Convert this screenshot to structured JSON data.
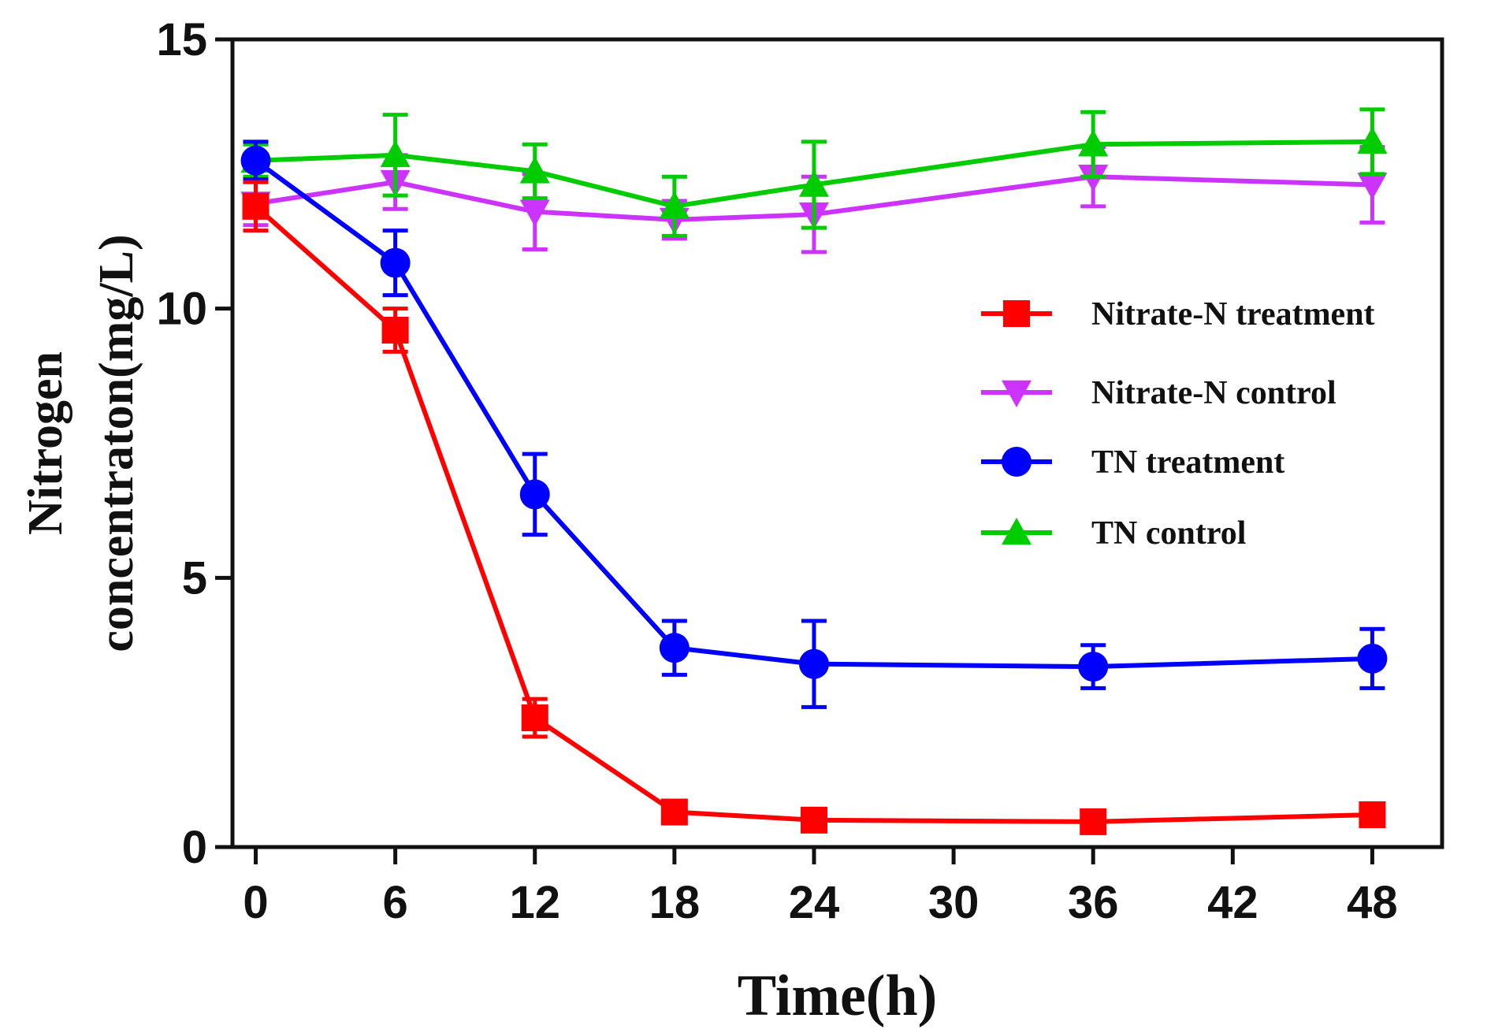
{
  "chart_data": {
    "type": "line",
    "title": "",
    "xlabel": "Time(h)",
    "ylabel_line1": "Nitrogen",
    "ylabel_line2": "concentraton(mg/L)",
    "xlim": [
      -1,
      51
    ],
    "ylim": [
      0,
      15
    ],
    "xticks": [
      0,
      6,
      12,
      18,
      24,
      30,
      36,
      42,
      48
    ],
    "yticks": [
      0,
      5,
      10,
      15
    ],
    "grid": false,
    "legend_position": "right",
    "x": [
      0,
      6,
      12,
      18,
      24,
      36,
      48
    ],
    "series": [
      {
        "name": "Nitrate-N treatment",
        "marker": "square",
        "color": "#ff0000",
        "values": [
          11.9,
          9.6,
          2.4,
          0.65,
          0.5,
          0.47,
          0.6
        ],
        "errors": [
          0.45,
          0.4,
          0.35,
          0.12,
          0.1,
          0.1,
          0.12
        ]
      },
      {
        "name": "Nitrate-N control",
        "marker": "triangle-down",
        "color": "#cc33ff",
        "values": [
          11.95,
          12.35,
          11.8,
          11.65,
          11.75,
          12.45,
          12.3
        ],
        "errors": [
          0.4,
          0.5,
          0.7,
          0.35,
          0.7,
          0.55,
          0.7
        ]
      },
      {
        "name": "TN treatment",
        "marker": "circle",
        "color": "#0000ff",
        "values": [
          12.75,
          10.85,
          6.55,
          3.7,
          3.4,
          3.35,
          3.5
        ],
        "errors": [
          0.35,
          0.6,
          0.75,
          0.5,
          0.8,
          0.4,
          0.55
        ]
      },
      {
        "name": "TN control",
        "marker": "triangle-up",
        "color": "#00cc00",
        "values": [
          12.75,
          12.85,
          12.55,
          11.9,
          12.3,
          13.05,
          13.1
        ],
        "errors": [
          0.3,
          0.75,
          0.5,
          0.55,
          0.8,
          0.6,
          0.6
        ]
      }
    ]
  }
}
